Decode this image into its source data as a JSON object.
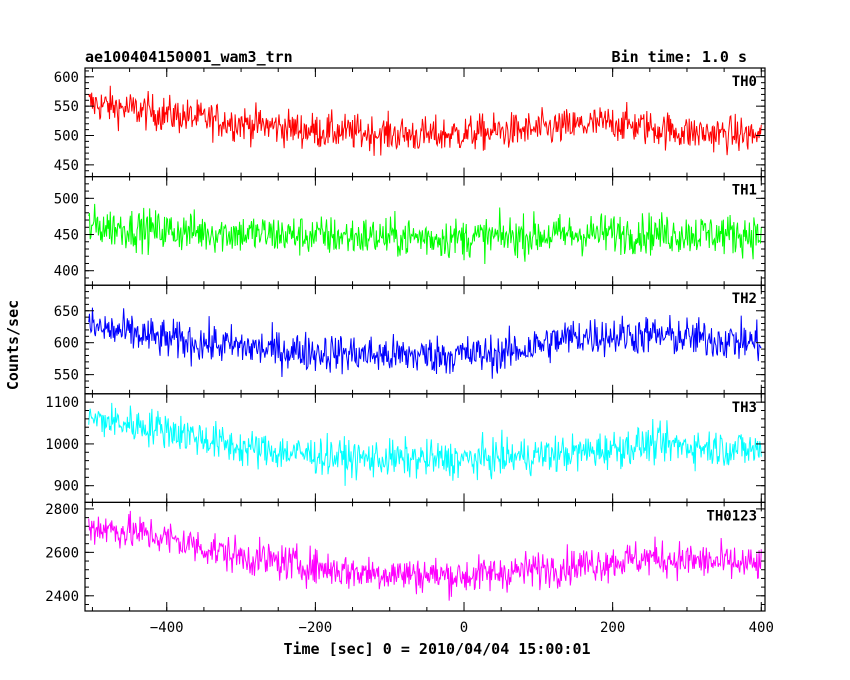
{
  "header": {
    "left_title": "ae100404150001_wam3_trn",
    "right_title": "Bin time: 1.0 s"
  },
  "chart_data": {
    "type": "line",
    "ylabel": "Counts/sec",
    "xlabel": "Time [sec] 0 = 2010/04/04 15:00:01",
    "xlim": [
      -510,
      405
    ],
    "x_ticks": [
      -400,
      -200,
      0,
      200,
      400
    ],
    "x_ticks_labels": [
      "−400",
      "−200",
      "0",
      "200",
      "400"
    ],
    "bin_seconds": 1.0,
    "panels": [
      {
        "name": "TH0",
        "color": "#ff0000",
        "ylim": [
          430,
          615
        ],
        "yticks": [
          450,
          500,
          550,
          600
        ],
        "trend": [
          {
            "x": -505,
            "y": 555
          },
          {
            "x": -450,
            "y": 545
          },
          {
            "x": -350,
            "y": 528
          },
          {
            "x": -200,
            "y": 508
          },
          {
            "x": -50,
            "y": 500
          },
          {
            "x": 100,
            "y": 510
          },
          {
            "x": 200,
            "y": 522
          },
          {
            "x": 300,
            "y": 505
          },
          {
            "x": 400,
            "y": 500
          }
        ],
        "noise": 22
      },
      {
        "name": "TH1",
        "color": "#00ff00",
        "ylim": [
          380,
          530
        ],
        "yticks": [
          400,
          450,
          500
        ],
        "trend": [
          {
            "x": -505,
            "y": 462
          },
          {
            "x": -400,
            "y": 455
          },
          {
            "x": -200,
            "y": 448
          },
          {
            "x": 0,
            "y": 445
          },
          {
            "x": 200,
            "y": 452
          },
          {
            "x": 400,
            "y": 450
          }
        ],
        "noise": 20
      },
      {
        "name": "TH2",
        "color": "#0000ff",
        "ylim": [
          520,
          690
        ],
        "yticks": [
          550,
          600,
          650
        ],
        "trend": [
          {
            "x": -505,
            "y": 625
          },
          {
            "x": -400,
            "y": 605
          },
          {
            "x": -250,
            "y": 588
          },
          {
            "x": -100,
            "y": 580
          },
          {
            "x": 50,
            "y": 582
          },
          {
            "x": 150,
            "y": 610
          },
          {
            "x": 250,
            "y": 612
          },
          {
            "x": 400,
            "y": 600
          }
        ],
        "noise": 22
      },
      {
        "name": "TH3",
        "color": "#00ffff",
        "ylim": [
          860,
          1120
        ],
        "yticks": [
          900,
          1000,
          1100
        ],
        "trend": [
          {
            "x": -505,
            "y": 1060
          },
          {
            "x": -400,
            "y": 1035
          },
          {
            "x": -300,
            "y": 990
          },
          {
            "x": -150,
            "y": 965
          },
          {
            "x": 0,
            "y": 962
          },
          {
            "x": 150,
            "y": 978
          },
          {
            "x": 250,
            "y": 1000
          },
          {
            "x": 400,
            "y": 985
          }
        ],
        "noise": 32
      },
      {
        "name": "TH0123",
        "color": "#ff00ff",
        "ylim": [
          2330,
          2830
        ],
        "yticks": [
          2400,
          2600,
          2800
        ],
        "trend": [
          {
            "x": -505,
            "y": 2720
          },
          {
            "x": -420,
            "y": 2680
          },
          {
            "x": -300,
            "y": 2580
          },
          {
            "x": -150,
            "y": 2510
          },
          {
            "x": 0,
            "y": 2490
          },
          {
            "x": 150,
            "y": 2540
          },
          {
            "x": 250,
            "y": 2575
          },
          {
            "x": 400,
            "y": 2540
          }
        ],
        "noise": 60
      }
    ]
  }
}
